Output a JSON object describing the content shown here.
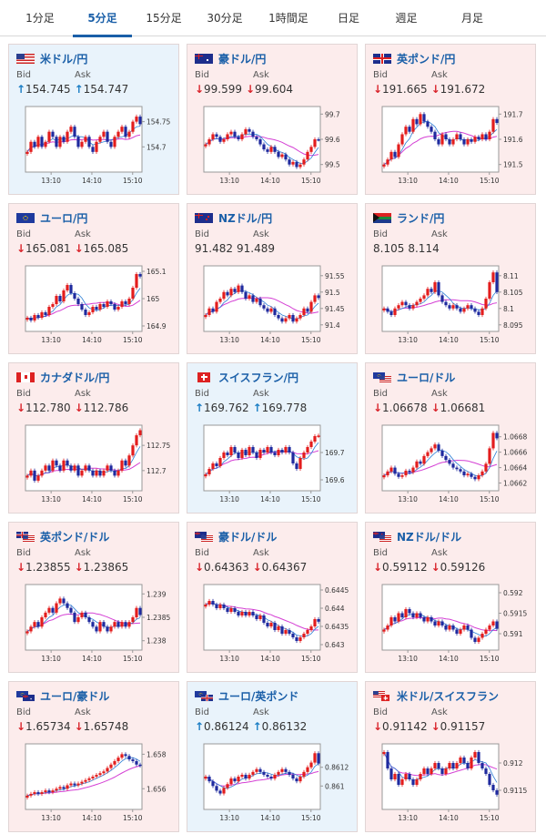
{
  "tabs": [
    {
      "label": "1分足",
      "active": false
    },
    {
      "label": "5分足",
      "active": true
    },
    {
      "label": "15分足",
      "active": false
    },
    {
      "label": "30分足",
      "active": false
    },
    {
      "label": "1時間足",
      "active": false
    },
    {
      "label": "日足",
      "active": false
    },
    {
      "label": "週足",
      "active": false
    },
    {
      "label": "月足",
      "active": false
    }
  ],
  "labels": {
    "bid": "Bid",
    "ask": "Ask"
  },
  "time_ticks": [
    "13:10",
    "14:10",
    "15:10"
  ],
  "colors": {
    "up_arrow": "#1a7dc4",
    "down_arrow": "#d9252c",
    "candle_up": "#e31d1d",
    "candle_down": "#1f2a9e",
    "ma_short": "#2d7fd6",
    "ma_long": "#d43fd4",
    "title": "#1a5fa8"
  },
  "pairs": [
    {
      "name": "米ドル/円",
      "flag": "us",
      "dir": "up",
      "bid": "154.745",
      "ask": "154.747",
      "yticks": [
        "154.75",
        "154.7"
      ],
      "ylim": [
        154.65,
        154.78
      ],
      "close": [
        154.69,
        154.71,
        154.7,
        154.72,
        154.7,
        154.71,
        154.73,
        154.72,
        154.7,
        154.72,
        154.71,
        154.73,
        154.74,
        154.72,
        154.7,
        154.71,
        154.72,
        154.7,
        154.69,
        154.71,
        154.72,
        154.73,
        154.71,
        154.7,
        154.72,
        154.73,
        154.74,
        154.72,
        154.73,
        154.75,
        154.76,
        154.745
      ]
    },
    {
      "name": "豪ドル/円",
      "flag": "au",
      "dir": "down",
      "bid": "99.599",
      "ask": "99.604",
      "yticks": [
        "99.7",
        "99.6",
        "99.5"
      ],
      "ylim": [
        99.47,
        99.73
      ],
      "close": [
        99.58,
        99.6,
        99.62,
        99.61,
        99.59,
        99.6,
        99.62,
        99.63,
        99.61,
        99.6,
        99.62,
        99.64,
        99.63,
        99.61,
        99.6,
        99.58,
        99.56,
        99.55,
        99.57,
        99.55,
        99.53,
        99.54,
        99.52,
        99.5,
        99.51,
        99.49,
        99.5,
        99.52,
        99.55,
        99.57,
        99.6,
        99.599
      ]
    },
    {
      "name": "英ポンド/円",
      "flag": "gb",
      "dir": "down",
      "bid": "191.665",
      "ask": "191.672",
      "yticks": [
        "191.7",
        "191.6",
        "191.5"
      ],
      "ylim": [
        191.47,
        191.73
      ],
      "close": [
        191.5,
        191.52,
        191.55,
        191.53,
        191.58,
        191.62,
        191.65,
        191.63,
        191.68,
        191.66,
        191.7,
        191.67,
        191.65,
        191.63,
        191.6,
        191.58,
        191.62,
        191.6,
        191.58,
        191.6,
        191.62,
        191.6,
        191.58,
        191.6,
        191.59,
        191.61,
        191.6,
        191.62,
        191.6,
        191.63,
        191.68,
        191.665
      ]
    },
    {
      "name": "ユーロ/円",
      "flag": "eu",
      "dir": "down",
      "bid": "165.081",
      "ask": "165.085",
      "yticks": [
        "165.1",
        "165",
        "164.9"
      ],
      "ylim": [
        164.88,
        165.12
      ],
      "close": [
        164.93,
        164.92,
        164.94,
        164.93,
        164.95,
        164.94,
        164.97,
        164.98,
        165.01,
        164.99,
        165.03,
        165.05,
        165.02,
        165.0,
        164.98,
        164.96,
        164.94,
        164.95,
        164.97,
        164.96,
        164.98,
        164.97,
        164.99,
        164.98,
        164.96,
        164.97,
        164.99,
        164.98,
        165.0,
        165.04,
        165.09,
        165.081
      ]
    },
    {
      "name": "NZドル/円",
      "flag": "nz",
      "dir": "none",
      "bid": "91.482",
      "ask": "91.489",
      "yticks": [
        "91.55",
        "91.5",
        "91.45",
        "91.4"
      ],
      "ylim": [
        91.38,
        91.58
      ],
      "close": [
        91.43,
        91.45,
        91.44,
        91.47,
        91.48,
        91.5,
        91.49,
        91.51,
        91.5,
        91.52,
        91.5,
        91.48,
        91.49,
        91.47,
        91.48,
        91.46,
        91.45,
        91.44,
        91.45,
        91.43,
        91.42,
        91.41,
        91.42,
        91.43,
        91.41,
        91.42,
        91.43,
        91.45,
        91.44,
        91.47,
        91.49,
        91.482
      ]
    },
    {
      "name": "ランド/円",
      "flag": "za",
      "dir": "none",
      "bid": "8.105",
      "ask": "8.114",
      "yticks": [
        "8.11",
        "8.105",
        "8.1",
        "8.095"
      ],
      "ylim": [
        8.093,
        8.113
      ],
      "close": [
        8.1,
        8.099,
        8.098,
        8.1,
        8.101,
        8.102,
        8.101,
        8.1,
        8.101,
        8.102,
        8.103,
        8.104,
        8.106,
        8.105,
        8.108,
        8.104,
        8.102,
        8.101,
        8.1,
        8.101,
        8.1,
        8.099,
        8.1,
        8.101,
        8.1,
        8.099,
        8.098,
        8.1,
        8.103,
        8.108,
        8.111,
        8.105
      ]
    },
    {
      "name": "カナダドル/円",
      "flag": "ca",
      "dir": "down",
      "bid": "112.780",
      "ask": "112.786",
      "yticks": [
        "112.75",
        "112.7"
      ],
      "ylim": [
        112.66,
        112.79
      ],
      "close": [
        112.69,
        112.7,
        112.68,
        112.69,
        112.7,
        112.71,
        112.7,
        112.72,
        112.71,
        112.7,
        112.72,
        112.71,
        112.7,
        112.71,
        112.69,
        112.7,
        112.71,
        112.7,
        112.69,
        112.7,
        112.69,
        112.7,
        112.71,
        112.7,
        112.69,
        112.7,
        112.72,
        112.71,
        112.73,
        112.75,
        112.77,
        112.78
      ]
    },
    {
      "name": "スイスフラン/円",
      "flag": "ch",
      "dir": "up",
      "bid": "169.762",
      "ask": "169.778",
      "yticks": [
        "169.7",
        "169.6"
      ],
      "ylim": [
        169.56,
        169.8
      ],
      "close": [
        169.62,
        169.64,
        169.66,
        169.65,
        169.68,
        169.7,
        169.69,
        169.72,
        169.7,
        169.68,
        169.71,
        169.69,
        169.72,
        169.7,
        169.68,
        169.71,
        169.7,
        169.72,
        169.7,
        169.69,
        169.71,
        169.7,
        169.72,
        169.7,
        169.66,
        169.64,
        169.68,
        169.7,
        169.72,
        169.74,
        169.76,
        169.762
      ]
    },
    {
      "name": "ユーロ/ドル",
      "flag": "eu-us",
      "dir": "down",
      "bid": "1.06678",
      "ask": "1.06681",
      "yticks": [
        "1.0668",
        "1.0666",
        "1.0664",
        "1.0662"
      ],
      "ylim": [
        1.0661,
        1.06695
      ],
      "close": [
        1.0663,
        1.06635,
        1.0664,
        1.06632,
        1.06628,
        1.0663,
        1.06636,
        1.06634,
        1.0664,
        1.06648,
        1.06645,
        1.06655,
        1.0666,
        1.06665,
        1.0667,
        1.06662,
        1.06655,
        1.0665,
        1.06645,
        1.0664,
        1.06638,
        1.06635,
        1.0663,
        1.06632,
        1.06628,
        1.06625,
        1.0663,
        1.06635,
        1.06645,
        1.06665,
        1.06685,
        1.06678
      ]
    },
    {
      "name": "英ポンド/ドル",
      "flag": "gb-us",
      "dir": "down",
      "bid": "1.23855",
      "ask": "1.23865",
      "yticks": [
        "1.239",
        "1.2385",
        "1.238"
      ],
      "ylim": [
        1.2378,
        1.2392
      ],
      "close": [
        1.2382,
        1.2383,
        1.2384,
        1.2383,
        1.2385,
        1.2386,
        1.2387,
        1.2386,
        1.2388,
        1.2389,
        1.2388,
        1.2387,
        1.2386,
        1.2384,
        1.2385,
        1.2386,
        1.2385,
        1.2384,
        1.2383,
        1.2382,
        1.2384,
        1.2383,
        1.2382,
        1.2383,
        1.2384,
        1.2383,
        1.2384,
        1.2383,
        1.2384,
        1.2385,
        1.2387,
        1.23855
      ]
    },
    {
      "name": "豪ドル/ドル",
      "flag": "au-us",
      "dir": "down",
      "bid": "0.64363",
      "ask": "0.64367",
      "yticks": [
        "0.6445",
        "0.644",
        "0.6435",
        "0.643"
      ],
      "ylim": [
        0.64285,
        0.64465
      ],
      "close": [
        0.6441,
        0.6442,
        0.6441,
        0.644,
        0.6441,
        0.644,
        0.6439,
        0.644,
        0.6439,
        0.6438,
        0.6439,
        0.6438,
        0.6439,
        0.6438,
        0.6437,
        0.6438,
        0.6436,
        0.6435,
        0.6436,
        0.6434,
        0.6435,
        0.6433,
        0.6434,
        0.6433,
        0.6432,
        0.6431,
        0.6432,
        0.6433,
        0.6434,
        0.6435,
        0.6437,
        0.64363
      ]
    },
    {
      "name": "NZドル/ドル",
      "flag": "nz-us",
      "dir": "down",
      "bid": "0.59112",
      "ask": "0.59126",
      "yticks": [
        "0.592",
        "0.5915",
        "0.591"
      ],
      "ylim": [
        0.5906,
        0.5922
      ],
      "close": [
        0.5911,
        0.5912,
        0.5914,
        0.5913,
        0.5915,
        0.5914,
        0.5916,
        0.5915,
        0.5914,
        0.5915,
        0.5914,
        0.5913,
        0.5914,
        0.5913,
        0.5912,
        0.5913,
        0.5912,
        0.5911,
        0.5912,
        0.5911,
        0.591,
        0.5911,
        0.5912,
        0.5911,
        0.5909,
        0.5908,
        0.5909,
        0.591,
        0.5911,
        0.5912,
        0.5913,
        0.59112
      ]
    },
    {
      "name": "ユーロ/豪ドル",
      "flag": "eu-au",
      "dir": "down",
      "bid": "1.65734",
      "ask": "1.65748",
      "yticks": [
        "1.658",
        "1.656"
      ],
      "ylim": [
        1.6548,
        1.6586
      ],
      "close": [
        1.6556,
        1.6557,
        1.6558,
        1.6557,
        1.6558,
        1.6559,
        1.6558,
        1.6559,
        1.656,
        1.6561,
        1.656,
        1.6562,
        1.6563,
        1.6562,
        1.6563,
        1.6564,
        1.6565,
        1.6566,
        1.6567,
        1.6568,
        1.6569,
        1.657,
        1.6572,
        1.6574,
        1.6576,
        1.6578,
        1.658,
        1.6579,
        1.6577,
        1.6576,
        1.6574,
        1.65734
      ]
    },
    {
      "name": "ユーロ/英ポンド",
      "flag": "eu-gb",
      "dir": "up",
      "bid": "0.86124",
      "ask": "0.86132",
      "yticks": [
        "0.8612",
        "0.861"
      ],
      "ylim": [
        0.86075,
        0.86145
      ],
      "close": [
        0.8611,
        0.86105,
        0.861,
        0.86095,
        0.86092,
        0.86098,
        0.86102,
        0.86108,
        0.86105,
        0.8611,
        0.86112,
        0.86108,
        0.86112,
        0.86115,
        0.86118,
        0.86115,
        0.86112,
        0.8611,
        0.86108,
        0.86112,
        0.86115,
        0.86118,
        0.86115,
        0.86112,
        0.86108,
        0.86105,
        0.8611,
        0.86115,
        0.8612,
        0.86125,
        0.86135,
        0.86124
      ]
    },
    {
      "name": "米ドル/スイスフラン",
      "flag": "us-ch",
      "dir": "down",
      "bid": "0.91142",
      "ask": "0.91157",
      "yticks": [
        "0.912",
        "0.9115"
      ],
      "ylim": [
        0.91115,
        0.91235
      ],
      "close": [
        0.9122,
        0.9119,
        0.9117,
        0.9118,
        0.9116,
        0.9117,
        0.9118,
        0.9117,
        0.9116,
        0.9117,
        0.9118,
        0.9119,
        0.9118,
        0.9119,
        0.912,
        0.9119,
        0.9118,
        0.9119,
        0.912,
        0.9119,
        0.912,
        0.9121,
        0.912,
        0.9119,
        0.9121,
        0.9122,
        0.912,
        0.9119,
        0.9118,
        0.9116,
        0.9115,
        0.91142
      ]
    }
  ]
}
